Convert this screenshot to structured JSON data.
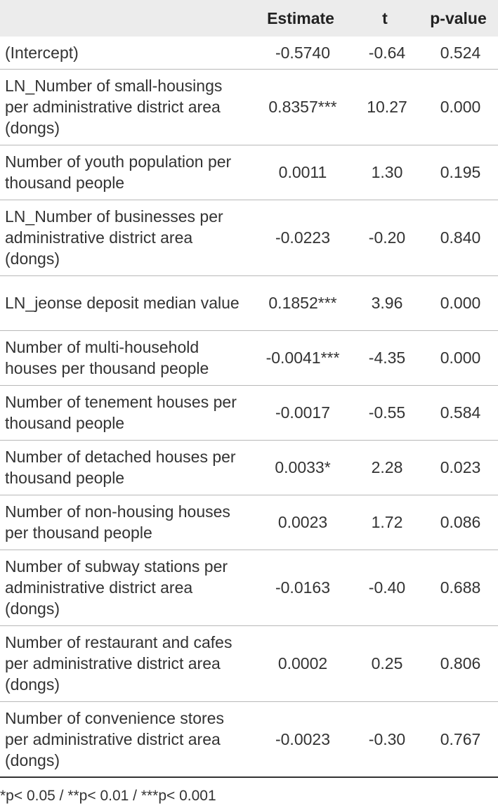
{
  "header": {
    "variable": "",
    "estimate": "Estimate",
    "t": "t",
    "p_value": "p-value"
  },
  "rows": [
    {
      "variable": "(Intercept)",
      "estimate": "-0.5740",
      "t": "-0.64",
      "p_value": "0.524"
    },
    {
      "variable": "LN_Number of small-housings per administrative district area (dongs)",
      "estimate": "0.8357***",
      "t": "10.27",
      "p_value": "0.000"
    },
    {
      "variable": "Number of youth population per thousand people",
      "estimate": "0.0011",
      "t": "1.30",
      "p_value": "0.195"
    },
    {
      "variable": "LN_Number of businesses per administrative district area (dongs)",
      "estimate": "-0.0223",
      "t": "-0.20",
      "p_value": "0.840"
    },
    {
      "variable": "LN_jeonse deposit median value",
      "estimate": "0.1852***",
      "t": "3.96",
      "p_value": "0.000"
    },
    {
      "variable": "Number of multi-household houses per thousand people",
      "estimate": "-0.0041***",
      "t": "-4.35",
      "p_value": "0.000"
    },
    {
      "variable": "Number of tenement houses per thousand people",
      "estimate": "-0.0017",
      "t": "-0.55",
      "p_value": "0.584"
    },
    {
      "variable": "Number of detached houses per thousand people",
      "estimate": "0.0033*",
      "t": "2.28",
      "p_value": "0.023"
    },
    {
      "variable": "Number of non-housing houses per thousand people",
      "estimate": "0.0023",
      "t": "1.72",
      "p_value": "0.086"
    },
    {
      "variable": "Number of subway stations per administrative district area (dongs)",
      "estimate": "-0.0163",
      "t": "-0.40",
      "p_value": "0.688"
    },
    {
      "variable": "Number of restaurant and cafes per administrative district area (dongs)",
      "estimate": "0.0002",
      "t": "0.25",
      "p_value": "0.806"
    },
    {
      "variable": "Number of convenience stores per administrative district area (dongs)",
      "estimate": "-0.0023",
      "t": "-0.30",
      "p_value": "0.767"
    }
  ],
  "footnote": "*p< 0.05 / **p< 0.01 / ***p< 0.001"
}
